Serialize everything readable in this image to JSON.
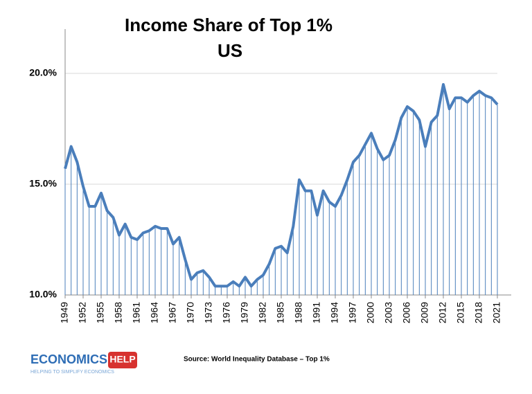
{
  "chart_data": {
    "type": "line",
    "title": "Income Share of Top 1%",
    "subtitle": "US",
    "source": "Source: World Inequality Database – Top 1%",
    "logo": {
      "main": "ECONOMICS",
      "badge": "HELP",
      "tagline": "HELPING TO SIMPLIFY ECONOMICS"
    },
    "x": [
      1949,
      1950,
      1951,
      1952,
      1953,
      1954,
      1955,
      1956,
      1957,
      1958,
      1959,
      1960,
      1961,
      1962,
      1963,
      1964,
      1965,
      1966,
      1967,
      1968,
      1969,
      1970,
      1971,
      1972,
      1973,
      1974,
      1975,
      1976,
      1977,
      1978,
      1979,
      1980,
      1981,
      1982,
      1983,
      1984,
      1985,
      1986,
      1987,
      1988,
      1989,
      1990,
      1991,
      1992,
      1993,
      1994,
      1995,
      1996,
      1997,
      1998,
      1999,
      2000,
      2001,
      2002,
      2003,
      2004,
      2005,
      2006,
      2007,
      2008,
      2009,
      2010,
      2011,
      2012,
      2013,
      2014,
      2015,
      2016,
      2017,
      2018,
      2019,
      2020,
      2021
    ],
    "series": [
      {
        "name": "Top 1%",
        "color": "#4a7ebb",
        "values": [
          15.7,
          16.7,
          16.0,
          14.9,
          14.0,
          14.0,
          14.6,
          13.8,
          13.5,
          12.7,
          13.2,
          12.6,
          12.5,
          12.8,
          12.9,
          13.1,
          13.0,
          13.0,
          12.3,
          12.6,
          11.6,
          10.7,
          11.0,
          11.1,
          10.8,
          10.4,
          10.4,
          10.4,
          10.6,
          10.4,
          10.8,
          10.4,
          10.7,
          10.9,
          11.4,
          12.1,
          12.2,
          11.9,
          13.1,
          15.2,
          14.7,
          14.7,
          13.6,
          14.7,
          14.2,
          14.0,
          14.5,
          15.2,
          16.0,
          16.3,
          16.8,
          17.3,
          16.6,
          16.1,
          16.3,
          17.0,
          18.0,
          18.5,
          18.3,
          17.9,
          16.7,
          17.8,
          18.1,
          19.5,
          18.4,
          18.9,
          18.9,
          18.7,
          19.0,
          19.2,
          19.0,
          18.9,
          18.6
        ]
      }
    ],
    "xlim": [
      1949,
      2021
    ],
    "xticks": [
      1949,
      1952,
      1955,
      1958,
      1961,
      1964,
      1967,
      1970,
      1973,
      1976,
      1979,
      1982,
      1985,
      1988,
      1991,
      1994,
      1997,
      2000,
      2003,
      2006,
      2009,
      2012,
      2015,
      2018,
      2021
    ],
    "ylim": [
      10,
      22
    ],
    "yticks": [
      {
        "value": 10,
        "label": "10.0%"
      },
      {
        "value": 15,
        "label": "15.0%"
      },
      {
        "value": 20,
        "label": "20.0%"
      }
    ],
    "grid": true
  }
}
